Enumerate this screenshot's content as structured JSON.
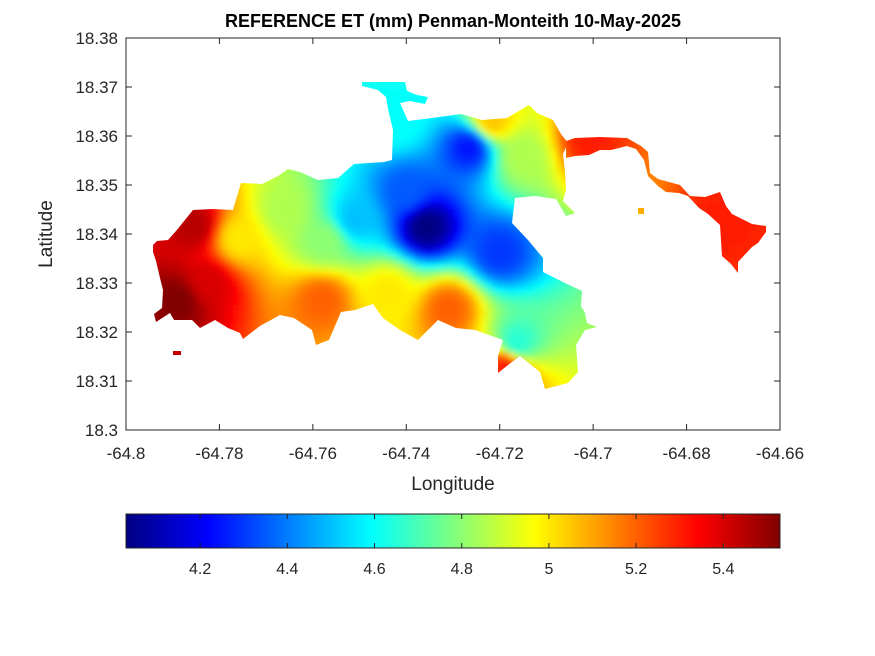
{
  "chart_data": {
    "type": "heatmap",
    "title": "REFERENCE ET (mm) Penman-Monteith 10-May-2025",
    "xlabel": "Longitude",
    "ylabel": "Latitude",
    "xlim": [
      -64.8,
      -64.66
    ],
    "ylim": [
      18.3,
      18.38
    ],
    "xticks": [
      -64.8,
      -64.78,
      -64.76,
      -64.74,
      -64.72,
      -64.7,
      -64.68,
      -64.66
    ],
    "xtick_labels": [
      "-64.8",
      "-64.78",
      "-64.76",
      "-64.74",
      "-64.72",
      "-64.7",
      "-64.68",
      "-64.66"
    ],
    "yticks": [
      18.3,
      18.31,
      18.32,
      18.33,
      18.34,
      18.35,
      18.36,
      18.37,
      18.38
    ],
    "ytick_labels": [
      "18.3",
      "18.31",
      "18.32",
      "18.33",
      "18.34",
      "18.35",
      "18.36",
      "18.37",
      "18.38"
    ],
    "colormap": "jet",
    "clim": [
      4.03,
      5.53
    ],
    "colorbar_ticks": [
      4.2,
      4.4,
      4.6,
      4.8,
      5,
      5.2,
      5.4
    ],
    "colorbar_tick_labels": [
      "4.2",
      "4.4",
      "4.6",
      "4.8",
      "5",
      "5.2",
      "5.4"
    ],
    "colorbar_location": "bottom",
    "grid": false,
    "values_sampled": [
      {
        "lon": -64.7355,
        "lat": 18.3413,
        "value": 4.03
      },
      {
        "lon": -64.7262,
        "lat": 18.3575,
        "value": 4.25
      },
      {
        "lon": -64.7199,
        "lat": 18.3361,
        "value": 4.3
      },
      {
        "lon": -64.7398,
        "lat": 18.3483,
        "value": 4.35
      },
      {
        "lon": -64.7507,
        "lat": 18.3428,
        "value": 4.5
      },
      {
        "lon": -64.7418,
        "lat": 18.3627,
        "value": 4.6
      },
      {
        "lon": -64.7161,
        "lat": 18.3175,
        "value": 4.65
      },
      {
        "lon": -64.7572,
        "lat": 18.3383,
        "value": 4.8
      },
      {
        "lon": -64.7659,
        "lat": 18.3445,
        "value": 4.85
      },
      {
        "lon": -64.7148,
        "lat": 18.3553,
        "value": 4.85
      },
      {
        "lon": -64.7757,
        "lat": 18.3388,
        "value": 5.0
      },
      {
        "lon": -64.7437,
        "lat": 18.328,
        "value": 5.0
      },
      {
        "lon": -64.7214,
        "lat": 18.3628,
        "value": 5.05
      },
      {
        "lon": -64.7577,
        "lat": 18.3263,
        "value": 5.2
      },
      {
        "lon": -64.7307,
        "lat": 18.3245,
        "value": 5.2
      },
      {
        "lon": -64.7184,
        "lat": 18.3125,
        "value": 5.3
      },
      {
        "lon": -64.7007,
        "lat": 18.3587,
        "value": 5.3
      },
      {
        "lon": -64.6716,
        "lat": 18.342,
        "value": 5.3
      },
      {
        "lon": -64.7821,
        "lat": 18.33,
        "value": 5.4
      },
      {
        "lon": -64.7851,
        "lat": 18.3415,
        "value": 5.45
      },
      {
        "lon": -64.7887,
        "lat": 18.3262,
        "value": 5.53
      }
    ]
  }
}
